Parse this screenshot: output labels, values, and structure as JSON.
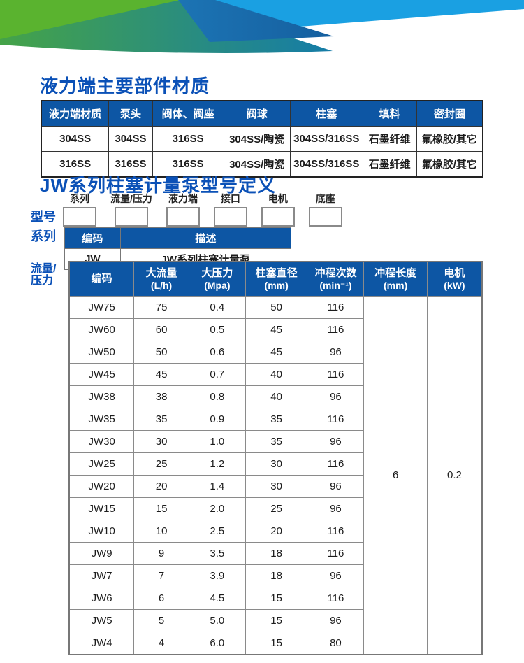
{
  "titles": {
    "section1": "液力端主要部件材质",
    "section2": "JW系列柱塞计量泵型号定义"
  },
  "materials_table": {
    "headers": [
      "液力端材质",
      "泵头",
      "阀体、阀座",
      "阀球",
      "柱塞",
      "填料",
      "密封圈"
    ],
    "rows": [
      [
        "304SS",
        "304SS",
        "316SS",
        "304SS/陶瓷",
        "304SS/316SS",
        "石墨纤维",
        "氟橡胶/其它"
      ],
      [
        "316SS",
        "316SS",
        "316SS",
        "304SS/陶瓷",
        "304SS/316SS",
        "石墨纤维",
        "氟橡胶/其它"
      ]
    ]
  },
  "model_definition": {
    "row_label": "型号",
    "segments": [
      "系列",
      "流量/压力",
      "液力端",
      "接口",
      "电机",
      "底座"
    ]
  },
  "series_table": {
    "row_label": "系列",
    "headers": [
      "编码",
      "描述"
    ],
    "rows": [
      [
        "JW",
        "JW系列柱塞计量泵"
      ]
    ]
  },
  "flow_pressure_table": {
    "row_label": "流量/压力",
    "headers": [
      {
        "line1": "编码",
        "line2": ""
      },
      {
        "line1": "大流量",
        "line2": "(L/h)"
      },
      {
        "line1": "大压力",
        "line2": "(Mpa)"
      },
      {
        "line1": "柱塞直径",
        "line2": "(mm)"
      },
      {
        "line1": "冲程次数",
        "line2": "(min⁻¹)"
      },
      {
        "line1": "冲程长度",
        "line2": "(mm)"
      },
      {
        "line1": "电机",
        "line2": "(kW)"
      }
    ],
    "rows": [
      [
        "JW75",
        "75",
        "0.4",
        "50",
        "116"
      ],
      [
        "JW60",
        "60",
        "0.5",
        "45",
        "116"
      ],
      [
        "JW50",
        "50",
        "0.6",
        "45",
        "96"
      ],
      [
        "JW45",
        "45",
        "0.7",
        "40",
        "116"
      ],
      [
        "JW38",
        "38",
        "0.8",
        "40",
        "96"
      ],
      [
        "JW35",
        "35",
        "0.9",
        "35",
        "116"
      ],
      [
        "JW30",
        "30",
        "1.0",
        "35",
        "96"
      ],
      [
        "JW25",
        "25",
        "1.2",
        "30",
        "116"
      ],
      [
        "JW20",
        "20",
        "1.4",
        "30",
        "96"
      ],
      [
        "JW15",
        "15",
        "2.0",
        "25",
        "96"
      ],
      [
        "JW10",
        "10",
        "2.5",
        "20",
        "116"
      ],
      [
        "JW9",
        "9",
        "3.5",
        "18",
        "116"
      ],
      [
        "JW7",
        "7",
        "3.9",
        "18",
        "96"
      ],
      [
        "JW6",
        "6",
        "4.5",
        "15",
        "116"
      ],
      [
        "JW5",
        "5",
        "5.0",
        "15",
        "96"
      ],
      [
        "JW4",
        "4",
        "6.0",
        "15",
        "80"
      ]
    ],
    "merged": {
      "stroke_length_mm": "6",
      "motor_kw": "0.2"
    }
  },
  "colors": {
    "table_header_blue": "#0d56a4",
    "title_blue": "#0b51b7",
    "banner_bright_green": "#5ab32f",
    "banner_teal_left": "#45a348",
    "banner_teal_right": "#157ca8",
    "banner_dark_blue": "#1c74b4",
    "banner_dark_blue_tip": "#155f9f",
    "banner_light_blue": "#1aa0e2"
  }
}
